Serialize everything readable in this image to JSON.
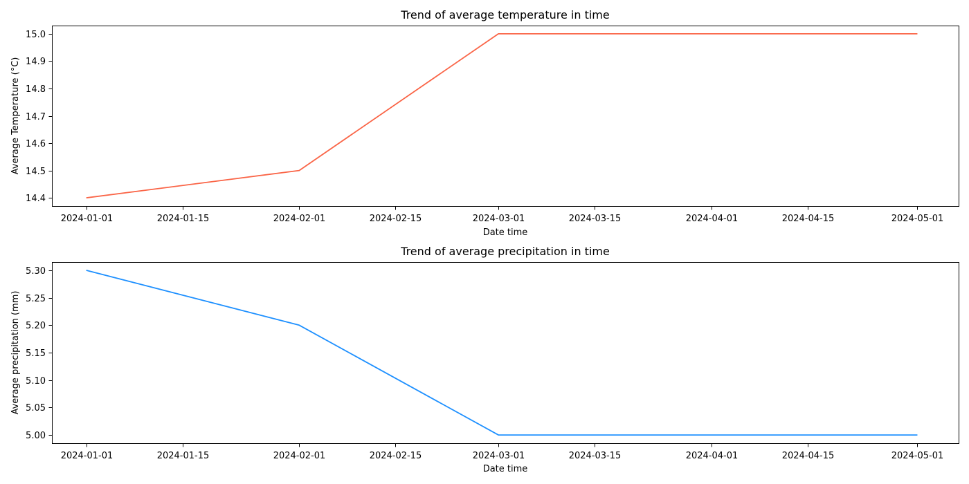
{
  "chart_data": [
    {
      "type": "line",
      "title": "Trend of average temperature in time",
      "xlabel": "Date time",
      "ylabel": "Average Temperature (°C)",
      "x": [
        "2024-01-01",
        "2024-02-01",
        "2024-03-01",
        "2024-04-01",
        "2024-05-01"
      ],
      "xlim": [
        "2023-12-27",
        "2024-05-07"
      ],
      "x_ticks": [
        "2024-01-01",
        "2024-01-15",
        "2024-02-01",
        "2024-02-15",
        "2024-03-01",
        "2024-03-15",
        "2024-04-01",
        "2024-04-15",
        "2024-05-01"
      ],
      "y_ticks": [
        "14.4",
        "14.5",
        "14.6",
        "14.7",
        "14.8",
        "14.9",
        "15.0"
      ],
      "ylim": [
        14.37,
        15.03
      ],
      "series": [
        {
          "name": "Average Temperature",
          "color": "#fa6446",
          "values": [
            14.4,
            14.5,
            15.0,
            15.0,
            15.0
          ]
        }
      ],
      "grid": false
    },
    {
      "type": "line",
      "title": "Trend of average precipitation in time",
      "xlabel": "Date time",
      "ylabel": "Average precipitation (mm)",
      "x": [
        "2024-01-01",
        "2024-02-01",
        "2024-03-01",
        "2024-04-01",
        "2024-05-01"
      ],
      "xlim": [
        "2023-12-27",
        "2024-05-07"
      ],
      "x_ticks": [
        "2024-01-01",
        "2024-01-15",
        "2024-02-01",
        "2024-02-15",
        "2024-03-01",
        "2024-03-15",
        "2024-04-01",
        "2024-04-15",
        "2024-05-01"
      ],
      "y_ticks": [
        "5.00",
        "5.05",
        "5.10",
        "5.15",
        "5.20",
        "5.25",
        "5.30"
      ],
      "ylim": [
        4.985,
        5.315
      ],
      "series": [
        {
          "name": "Average precipitation",
          "color": "#1e90ff",
          "values": [
            5.3,
            5.2,
            5.0,
            5.0,
            5.0
          ]
        }
      ],
      "grid": false
    }
  ]
}
